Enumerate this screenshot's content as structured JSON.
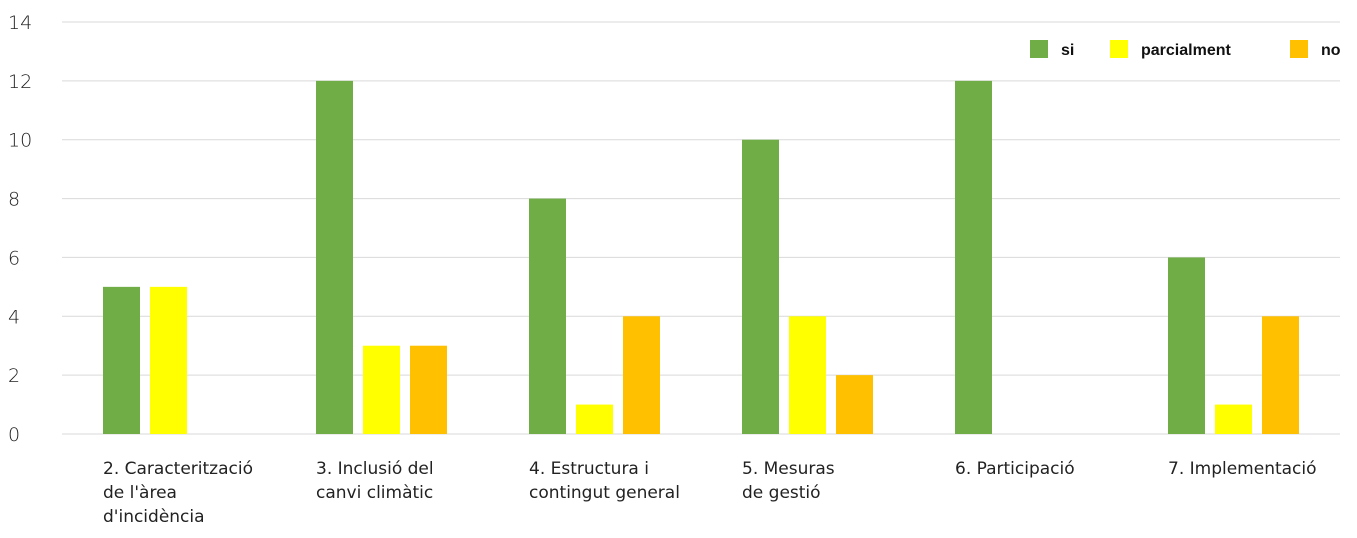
{
  "chart_data": {
    "type": "bar",
    "categories": [
      [
        "2. Caracterització",
        "de l'àrea",
        "d'incidència"
      ],
      [
        "3. Inclusió del",
        "canvi climàtic"
      ],
      [
        "4. Estructura i",
        "contingut general"
      ],
      [
        "5. Mesuras",
        "de gestió"
      ],
      [
        "6. Participació"
      ],
      [
        "7. Implementació"
      ]
    ],
    "series": [
      {
        "name": "si",
        "color": "#70ad47",
        "values": [
          5,
          12,
          8,
          10,
          12,
          6
        ]
      },
      {
        "name": "parcialment",
        "color": "#ffff00",
        "values": [
          5,
          3,
          1,
          4,
          0,
          1
        ]
      },
      {
        "name": "no",
        "color": "#ffc000",
        "values": [
          0,
          3,
          4,
          2,
          0,
          4
        ]
      }
    ],
    "ylim": [
      0,
      14
    ],
    "yticks": [
      0,
      2,
      4,
      6,
      8,
      10,
      12,
      14
    ],
    "grid": true,
    "legend_position": "top-right"
  }
}
